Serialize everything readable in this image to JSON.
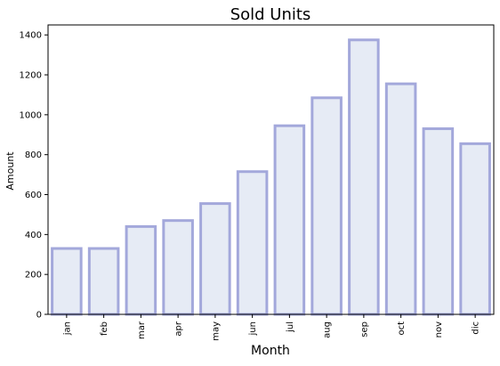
{
  "chart_data": {
    "type": "bar",
    "title": "Sold Units",
    "xlabel": "Month",
    "ylabel": "Amount",
    "categories": [
      "jan",
      "feb",
      "mar",
      "apr",
      "may",
      "jun",
      "jul",
      "aug",
      "sep",
      "oct",
      "nov",
      "dic"
    ],
    "values": [
      330,
      330,
      440,
      470,
      555,
      715,
      945,
      1085,
      1375,
      1155,
      930,
      855
    ],
    "ylim": [
      0,
      1450
    ],
    "yticks": [
      0,
      200,
      400,
      600,
      800,
      1000,
      1200,
      1400
    ],
    "grid": false,
    "legend": "none",
    "bar_fill": "#e6ebf5",
    "bar_edge": "#a3a8db",
    "axis_color": "#000000",
    "text_color": "#000000"
  }
}
